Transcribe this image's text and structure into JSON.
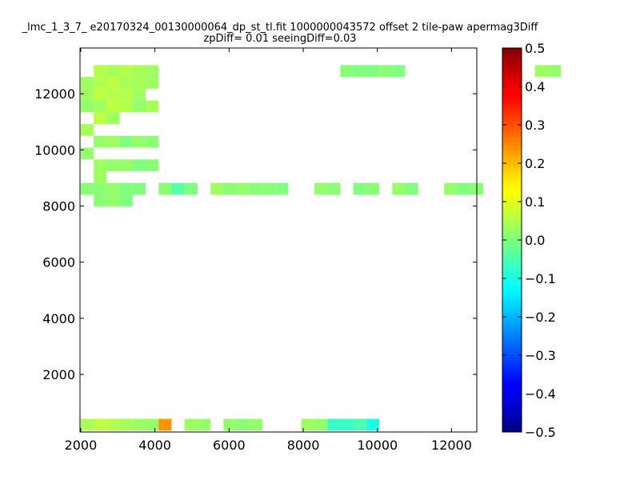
{
  "chart_data": {
    "type": "heatmap",
    "title": "_lmc_1_3_7_ e20170324_00130000064_dp_st_tl.fit 1000000043572 offset 2 tile-paw apermag3Diff",
    "subtitle": "zpDiff= 0.01 seeingDiff=0.03",
    "xlabel": "",
    "ylabel": "",
    "xlim": [
      1980,
      12680
    ],
    "ylim": [
      -50,
      13630
    ],
    "xticks": [
      2000,
      4000,
      6000,
      8000,
      10000,
      12000
    ],
    "yticks": [
      2000,
      4000,
      6000,
      8000,
      10000,
      12000
    ],
    "colorbar": {
      "colormap": "jet",
      "range": [
        -0.5,
        0.5
      ],
      "ticks": [
        "0.5",
        "0.4",
        "0.3",
        "0.2",
        "0.1",
        "0.0",
        "−0.1",
        "−0.2",
        "−0.3",
        "−0.4",
        "−0.5"
      ]
    },
    "cell_size": [
      350,
      420
    ],
    "x0": 2000,
    "y0": 0,
    "rows": [
      ". 0.05 0.04 0.05 0.04 0.03 . . . . . . . . . . . . . . 0.01 0.00 0.00 0.01 0.00 . . . . . . . . . . 0.03 0.02 . . . . . . . .",
      "0.03 0.05 0.06 0.04 0.04 0.03 . . . . . . . . . . . . . . . . . . . . . . . . . . . . . . . . . . . . . . . .",
      "0.03 0.06 0.05 0.05 0.03 . . . . . . . . . . . . . . . . . . . . . . . . . . . . . . . . . . . . . . . . .",
      "0.02 0.03 0.06 0.05 0.02 0.04 . . . . . . . . . . . . . . . . . . . . . . . . . . . . . . . . . . . . . . .",
      ". 0.06 0.03 . . . . . . . . . . . . . . . . . . . . . . . . . . . . . . . . . . . . . . . . . .",
      "0.04 . . . . . . . . . . . . . . . . . . . . . . . . . . . . . . . . . . . . . . . . . . . . .",
      ". 0.02 0.03 0.00 0.02 0.01 . . . . . . . . . . . . . . . . . . . . . . . . . . . . . . . . . . . . .",
      "0.02 . . . . . . . . . . . . . . . . . . . . . . . . . . . . . . . . . . . . . . . . . . . . .",
      ". 0.03 0.02 0.02 0.00 0.01 . . . . . . . . . . . . . . . . . . . . . . . . . . . . . . . . . . . . . .",
      ". 0.03 . . . . . . . . . . . . . . . . . . . . . . . . . . . . . . . . . . . . . . . . . . . . . .",
      "0.01 0.01 0.02 0.00 0.00 . 0.01 -0.04 0.00 . 0.03 0.01 0.02 0.01 0.01 0.00 . . 0.02 0.01 . 0.00 0.01 . 0.02 0.00 . . 0.02 0.00 0.01 . . . . . . . . . .",
      ". 0.01 0.02 0.00 . . . . . . . . . . . . . . . . . . . . . . . . . . . . . . . . . . . . . . . . . . . .",
      ". . . . . . . . . . . . . . . . . . . . . . . . . . . . . . . . . . . . . . . . . . . . . . . . . . . .",
      ". . . . . . . . . . . . . . . . . . . . . . . . . . . . . . . . . . . . . . . . . . . . . . . . . . . .",
      ". . . . . . . . . . . . . . . . . . . . . . . . . . . . . . . . . . . . . . . . . . . . . . . . . . . .",
      ". . . . . . . . . . . . . . . . . . . . . . . . . . . . . . . . . . . . . . . . . . . . . . . . . . . .",
      ". . . . . . . . . . . . . . . . . . . . . . . . . . . . . . . . . . . . . . . . . . . . . . . . . . . .",
      ". . . . . . . . . . . . . . . . . . . . . . . . . . . . . . . . . . . . . . . . . . . . . . . . . . . .",
      ". . . . . . . . . . . . . . . . . . . . . . . . . . . . . . . . . . . . . . . . . . . . . . . . . . . .",
      ". . . . . . . . . . . . . . . . . . . . . . . . . . . . . . . . . . . . . . . . . . . . . . . . . . . .",
      ". . . . . . . . . . . . . . . . . . . . . . . . . . . . . . . . . . . . . . . . . . . . . . . . . . . .",
      ". . . . . . . . . . . . . . . . . . . . . . . . . . . . . . . . . . . . . . . . . . . . . . . . . . . .",
      ". . . . . . . . . . . . . . . . . . . . . . . . . . . . . . . . . . . . . . . . . . . . . . . . . . . .",
      ". . . . . . . . . . . . . . . . . . . . . . . . . . . . . . . . . . . . . . . . . . . . . . . . . . . .",
      ". . . . . . . . . . . . . . . . . . . . . . . . . . . . . . . . . . . . . . . . . . . . . . . . . . . .",
      ". . . . . . . . . . . . . . . . . . . . . . . . . . . . . . . . . . . . . . . . . . . . . . . . . . . .",
      ". . . . . . . . . . . . . . . . . . . . . . . . . . . . . . . . . . . . . . . . . . . . . . . . . . . .",
      ". . . . . . . . . . . . . . . . . . . . . . . . . . . . . . . . . . . . . . . . . . . . . . . . . . . .",
      ". . . . . . . . . . . . . . . . . . . . . . . . . . . . . . . . . . . . . . . . . . . . . . . . . . . .",
      ". . . . . . . . . . . . . . . . . . . . . . . . . . . . . . . . . . . . . . . . . . . . . . . . . . . .",
      ". . . . . . . . . . . . . . . . . . . . . . . . . . . . . . . . . . . . . . . . . . . . . . . . . . . ."
    ],
    "blocks": [
      {
        "x": [
          2000,
          2350
        ],
        "y": [
          0,
          420
        ],
        "value": 0.04
      },
      {
        "x": [
          2350,
          2700
        ],
        "y": [
          0,
          420
        ],
        "value": 0.06
      },
      {
        "x": [
          2700,
          3050
        ],
        "y": [
          0,
          420
        ],
        "value": 0.05
      },
      {
        "x": [
          3050,
          3400
        ],
        "y": [
          0,
          420
        ],
        "value": 0.04
      },
      {
        "x": [
          3400,
          3750
        ],
        "y": [
          0,
          420
        ],
        "value": 0.03
      },
      {
        "x": [
          3750,
          4100
        ],
        "y": [
          0,
          420
        ],
        "value": 0.02
      },
      {
        "x": [
          4100,
          4450
        ],
        "y": [
          0,
          420
        ],
        "value": 0.23
      },
      {
        "x": [
          4800,
          5150
        ],
        "y": [
          0,
          420
        ],
        "value": 0.03
      },
      {
        "x": [
          5150,
          5500
        ],
        "y": [
          0,
          420
        ],
        "value": 0.02
      },
      {
        "x": [
          5850,
          6200
        ],
        "y": [
          0,
          420
        ],
        "value": 0.02
      },
      {
        "x": [
          6200,
          6550
        ],
        "y": [
          0,
          420
        ],
        "value": 0.01
      },
      {
        "x": [
          6550,
          6900
        ],
        "y": [
          0,
          420
        ],
        "value": 0.02
      },
      {
        "x": [
          7950,
          8300
        ],
        "y": [
          0,
          420
        ],
        "value": 0.03
      },
      {
        "x": [
          8300,
          8650
        ],
        "y": [
          0,
          420
        ],
        "value": 0.02
      },
      {
        "x": [
          8650,
          9000
        ],
        "y": [
          0,
          420
        ],
        "value": -0.07
      },
      {
        "x": [
          9000,
          9350
        ],
        "y": [
          0,
          420
        ],
        "value": -0.07
      },
      {
        "x": [
          9350,
          9700
        ],
        "y": [
          0,
          420
        ],
        "value": -0.05
      },
      {
        "x": [
          9700,
          10050
        ],
        "y": [
          0,
          420
        ],
        "value": -0.1
      }
    ]
  }
}
